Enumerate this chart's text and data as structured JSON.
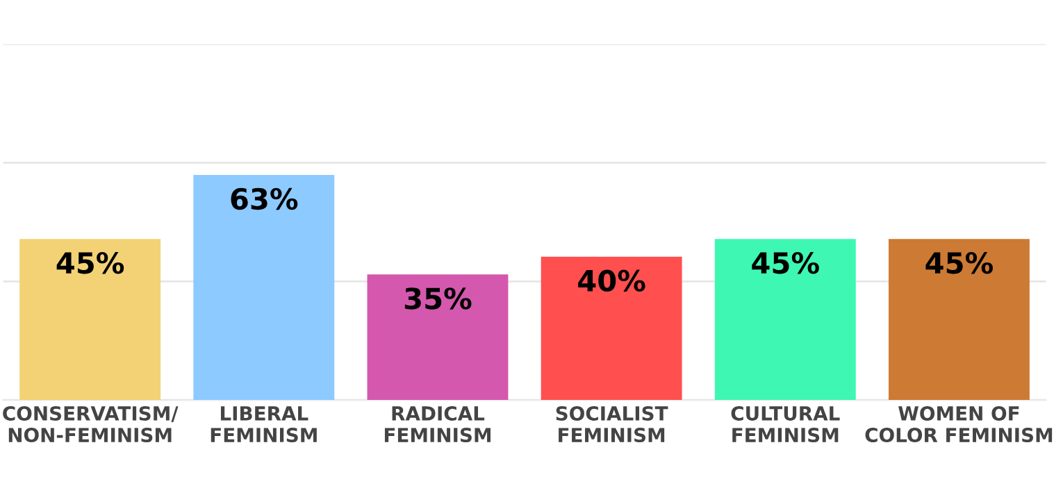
{
  "chart_data": {
    "type": "bar",
    "categories": [
      "CONSERVATISM/\nNON-FEMINISM",
      "LIBERAL\nFEMINISM",
      "RADICAL\nFEMINISM",
      "SOCIALIST\nFEMINISM",
      "CULTURAL\nFEMINISM",
      "WOMEN OF\nCOLOR FEMINISM"
    ],
    "values": [
      45,
      63,
      35,
      40,
      45,
      45
    ],
    "value_labels": [
      "45%",
      "63%",
      "35%",
      "40%",
      "45%",
      "45%"
    ],
    "colors": [
      "#f2d274",
      "#8ccaff",
      "#d458ae",
      "#ff4f4f",
      "#3ef7b2",
      "#cd7a35"
    ],
    "ylim": [
      0,
      100
    ],
    "yticks": [
      {
        "value": 0,
        "label": null
      },
      {
        "value": 33.3,
        "label": null
      },
      {
        "value": 66.7,
        "label": null
      },
      {
        "value": 100,
        "label": null
      }
    ],
    "grid": "y",
    "tick_labels": "x"
  }
}
